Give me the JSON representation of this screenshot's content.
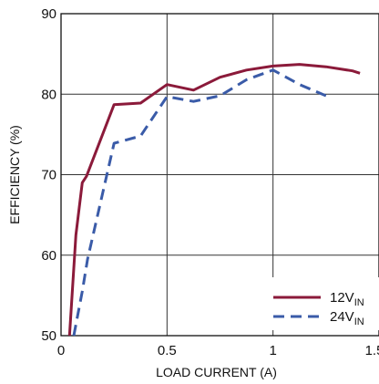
{
  "chart_data": {
    "type": "line",
    "title": "",
    "xlabel": "LOAD CURRENT (A)",
    "ylabel": "EFFICIENCY (%)",
    "xlim": [
      0,
      1.5
    ],
    "ylim": [
      50,
      90
    ],
    "x_ticks": [
      0,
      0.5,
      1,
      1.5
    ],
    "x_tick_labels": [
      "0",
      "0.5",
      "1",
      "1.5"
    ],
    "y_ticks": [
      50,
      60,
      70,
      80,
      90
    ],
    "y_tick_labels": [
      "50",
      "60",
      "70",
      "80",
      "90"
    ],
    "grid": true,
    "legend_position": "bottom-right",
    "series": [
      {
        "name": "12V",
        "name_sub": "IN",
        "color": "#8b1a3a",
        "style": "solid",
        "x": [
          0.04,
          0.07,
          0.1,
          0.12,
          0.25,
          0.375,
          0.5,
          0.625,
          0.75,
          0.875,
          1.0,
          1.125,
          1.25,
          1.375,
          1.41
        ],
        "y": [
          50,
          62.5,
          69,
          69.8,
          78.7,
          78.9,
          81.2,
          80.5,
          82.1,
          83.0,
          83.5,
          83.7,
          83.4,
          82.9,
          82.6
        ]
      },
      {
        "name": "24V",
        "name_sub": "IN",
        "color": "#3a5ba8",
        "style": "dashed",
        "x": [
          0.06,
          0.1,
          0.125,
          0.25,
          0.375,
          0.5,
          0.625,
          0.75,
          0.875,
          1.0,
          1.125,
          1.25
        ],
        "y": [
          50,
          55.5,
          59.5,
          73.9,
          74.8,
          79.7,
          79.1,
          79.8,
          81.8,
          83.0,
          81.2,
          79.8
        ]
      }
    ]
  }
}
